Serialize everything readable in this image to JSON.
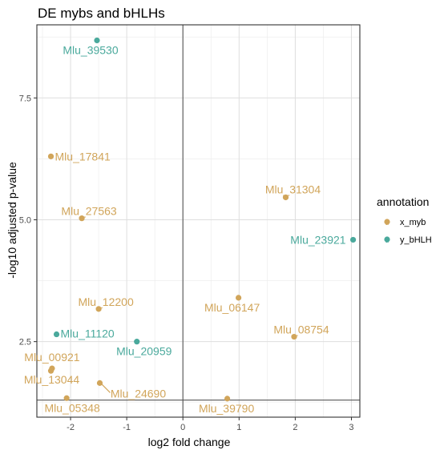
{
  "chart_data": {
    "type": "scatter",
    "title": "DE mybs and bHLHs",
    "xlabel": "log2 fold change",
    "ylabel": "-log10 adjusted p-value",
    "xlim": [
      -2.6,
      3.15
    ],
    "ylim": [
      0.95,
      9.0
    ],
    "x_ticks": [
      -2,
      -1,
      0,
      1,
      2,
      3
    ],
    "y_ticks": [
      2.5,
      5.0,
      7.5
    ],
    "y_tick_labels": [
      "2.5",
      "5.0",
      "7.5"
    ],
    "grid": true,
    "reference_lines": {
      "vertical_x": 0,
      "horizontal_y": 1.3
    },
    "legend": {
      "title": "annotation",
      "placement": "right",
      "entries": [
        {
          "key": "x_myb",
          "label": "x_myb",
          "color": "#d1a55a"
        },
        {
          "key": "y_bHLH",
          "label": "y_bHLH",
          "color": "#4aa99c"
        }
      ]
    },
    "series": [
      {
        "name": "x_myb",
        "color": "#d1a55a",
        "points": [
          {
            "label": "Mlu_17841",
            "x": -2.35,
            "y": 6.3
          },
          {
            "label": "Mlu_27563",
            "x": -1.8,
            "y": 5.03
          },
          {
            "label": "Mlu_12200",
            "x": -1.5,
            "y": 3.17
          },
          {
            "label": "Mlu_00921",
            "x": -2.33,
            "y": 1.95
          },
          {
            "label": "Mlu_13044",
            "x": -2.35,
            "y": 1.9
          },
          {
            "label": "Mlu_24690",
            "x": -1.48,
            "y": 1.65
          },
          {
            "label": "Mlu_05348",
            "x": -2.07,
            "y": 1.34
          },
          {
            "label": "Mlu_31304",
            "x": 1.83,
            "y": 5.46
          },
          {
            "label": "Mlu_06147",
            "x": 0.99,
            "y": 3.4
          },
          {
            "label": "Mlu_08754",
            "x": 1.98,
            "y": 2.6
          },
          {
            "label": "Mlu_39790",
            "x": 0.79,
            "y": 1.33
          }
        ]
      },
      {
        "name": "y_bHLH",
        "color": "#4aa99c",
        "points": [
          {
            "label": "Mlu_39530",
            "x": -1.53,
            "y": 8.68
          },
          {
            "label": "Mlu_23921",
            "x": 3.03,
            "y": 4.59
          },
          {
            "label": "Mlu_11120",
            "x": -2.25,
            "y": 2.65
          },
          {
            "label": "Mlu_20959",
            "x": -0.82,
            "y": 2.5
          }
        ]
      }
    ]
  }
}
